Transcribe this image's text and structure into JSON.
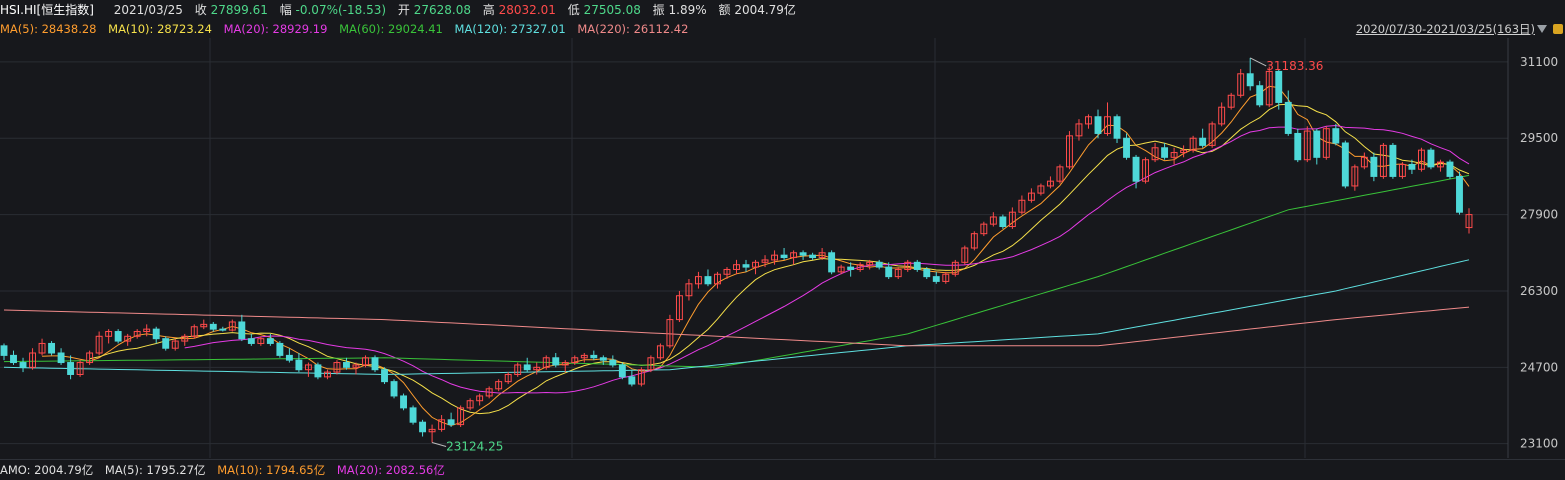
{
  "header": {
    "symbol": "HSI.HI[恒生指数]",
    "date": "2021/03/25",
    "close_label": "收",
    "close": "27899.61",
    "change_label": "幅",
    "change": "-0.07%(-18.53)",
    "open_label": "开",
    "open": "27628.08",
    "high_label": "高",
    "high": "28032.01",
    "low_label": "低",
    "low": "27505.08",
    "amp_label": "振",
    "amp": "1.89%",
    "amount_label": "额",
    "amount": "2004.79亿"
  },
  "ma_bar": {
    "ma5": "MA(5): 28438.28",
    "ma10": "MA(10): 28723.24",
    "ma20": "MA(20): 28929.19",
    "ma60": "MA(60): 29024.41",
    "ma120": "MA(120): 27327.01",
    "ma220": "MA(220): 26112.42",
    "range": "2020/07/30-2021/03/25(163日)"
  },
  "footer": {
    "amo": "AMO: 2004.79亿",
    "ma5": "MA(5): 1795.27亿",
    "ma10": "MA(10): 1794.65亿",
    "ma20": "MA(20): 2082.56亿"
  },
  "colors": {
    "up": "#ff4b4b",
    "down": "#4ed8d8",
    "ma5": "#ff9d2e",
    "ma10": "#f5e04a",
    "ma20": "#e53be5",
    "ma60": "#39c339",
    "ma120": "#5fe0e0",
    "ma220": "#f08a8a",
    "grid": "#2a2d33",
    "axis_text": "#c8c8c8"
  },
  "chart_data": {
    "type": "candlestick",
    "ylim": [
      22800,
      31600
    ],
    "y_ticks": [
      "31100",
      "29500",
      "27900",
      "26300",
      "24700",
      "23100"
    ],
    "annotations": {
      "max_label": "31183.36",
      "min_label": "23124.25"
    },
    "candles_ohlc": [
      [
        25150,
        25200,
        24850,
        24950
      ],
      [
        24950,
        25050,
        24750,
        24800
      ],
      [
        24800,
        24900,
        24600,
        24700
      ],
      [
        24700,
        25100,
        24650,
        25000
      ],
      [
        25000,
        25300,
        24950,
        25200
      ],
      [
        25200,
        25250,
        24950,
        25000
      ],
      [
        25000,
        25100,
        24750,
        24800
      ],
      [
        24800,
        24950,
        24450,
        24550
      ],
      [
        24550,
        24850,
        24500,
        24800
      ],
      [
        24800,
        25050,
        24750,
        25000
      ],
      [
        25000,
        25450,
        24950,
        25350
      ],
      [
        25350,
        25500,
        25200,
        25450
      ],
      [
        25450,
        25500,
        25200,
        25250
      ],
      [
        25250,
        25400,
        25150,
        25350
      ],
      [
        25350,
        25500,
        25300,
        25450
      ],
      [
        25450,
        25600,
        25350,
        25500
      ],
      [
        25500,
        25550,
        25200,
        25300
      ],
      [
        25300,
        25350,
        25050,
        25100
      ],
      [
        25100,
        25300,
        25050,
        25250
      ],
      [
        25250,
        25400,
        25150,
        25350
      ],
      [
        25350,
        25600,
        25300,
        25550
      ],
      [
        25550,
        25700,
        25500,
        25600
      ],
      [
        25600,
        25650,
        25450,
        25500
      ],
      [
        25500,
        25550,
        25450,
        25480
      ],
      [
        25480,
        25700,
        25450,
        25650
      ],
      [
        25650,
        25800,
        25250,
        25300
      ],
      [
        25300,
        25400,
        25150,
        25200
      ],
      [
        25200,
        25350,
        25150,
        25300
      ],
      [
        25300,
        25400,
        25150,
        25200
      ],
      [
        25200,
        25250,
        24900,
        24950
      ],
      [
        24950,
        25100,
        24800,
        24850
      ],
      [
        24850,
        25000,
        24600,
        24650
      ],
      [
        24650,
        24800,
        24500,
        24750
      ],
      [
        24750,
        24800,
        24450,
        24500
      ],
      [
        24500,
        24650,
        24450,
        24600
      ],
      [
        24600,
        24850,
        24550,
        24800
      ],
      [
        24800,
        24900,
        24650,
        24700
      ],
      [
        24700,
        24800,
        24550,
        24750
      ],
      [
        24750,
        24950,
        24700,
        24900
      ],
      [
        24900,
        24950,
        24600,
        24650
      ],
      [
        24650,
        24700,
        24350,
        24400
      ],
      [
        24400,
        24450,
        24050,
        24100
      ],
      [
        24100,
        24150,
        23800,
        23850
      ],
      [
        23850,
        23900,
        23500,
        23550
      ],
      [
        23550,
        23600,
        23250,
        23350
      ],
      [
        23350,
        23500,
        23124,
        23400
      ],
      [
        23400,
        23700,
        23350,
        23600
      ],
      [
        23600,
        23750,
        23450,
        23500
      ],
      [
        23500,
        23900,
        23450,
        23850
      ],
      [
        23850,
        24050,
        23800,
        24000
      ],
      [
        24000,
        24150,
        23900,
        24100
      ],
      [
        24100,
        24300,
        24050,
        24250
      ],
      [
        24250,
        24450,
        24200,
        24400
      ],
      [
        24400,
        24600,
        24350,
        24550
      ],
      [
        24550,
        24800,
        24500,
        24750
      ],
      [
        24750,
        24900,
        24600,
        24650
      ],
      [
        24650,
        24800,
        24550,
        24700
      ],
      [
        24700,
        24950,
        24650,
        24900
      ],
      [
        24900,
        25000,
        24700,
        24750
      ],
      [
        24750,
        24850,
        24600,
        24800
      ],
      [
        24800,
        24950,
        24750,
        24900
      ],
      [
        24900,
        25000,
        24800,
        24950
      ],
      [
        24950,
        25050,
        24850,
        24900
      ],
      [
        24900,
        24950,
        24750,
        24850
      ],
      [
        24850,
        24950,
        24700,
        24750
      ],
      [
        24750,
        24800,
        24450,
        24500
      ],
      [
        24500,
        24650,
        24300,
        24350
      ],
      [
        24350,
        24700,
        24300,
        24650
      ],
      [
        24650,
        24950,
        24600,
        24900
      ],
      [
        24900,
        25200,
        24850,
        25150
      ],
      [
        25150,
        25800,
        25100,
        25700
      ],
      [
        25700,
        26300,
        25650,
        26200
      ],
      [
        26200,
        26550,
        26100,
        26450
      ],
      [
        26450,
        26700,
        26350,
        26600
      ],
      [
        26600,
        26750,
        26400,
        26450
      ],
      [
        26450,
        26700,
        26350,
        26650
      ],
      [
        26650,
        26800,
        26550,
        26750
      ],
      [
        26750,
        26950,
        26650,
        26850
      ],
      [
        26850,
        26950,
        26700,
        26800
      ],
      [
        26800,
        26950,
        26650,
        26900
      ],
      [
        26900,
        27050,
        26800,
        26950
      ],
      [
        26950,
        27150,
        26850,
        27050
      ],
      [
        27050,
        27200,
        26950,
        27000
      ],
      [
        27000,
        27150,
        26850,
        27100
      ],
      [
        27100,
        27150,
        26950,
        27050
      ],
      [
        27050,
        27100,
        26950,
        27000
      ],
      [
        27000,
        27200,
        26950,
        27100
      ],
      [
        27100,
        27150,
        26650,
        26700
      ],
      [
        26700,
        26850,
        26650,
        26800
      ],
      [
        26800,
        26900,
        26600,
        26750
      ],
      [
        26750,
        26900,
        26700,
        26850
      ],
      [
        26850,
        26950,
        26750,
        26900
      ],
      [
        26900,
        26950,
        26750,
        26800
      ],
      [
        26800,
        26900,
        26550,
        26600
      ],
      [
        26600,
        26800,
        26550,
        26750
      ],
      [
        26750,
        26950,
        26700,
        26900
      ],
      [
        26900,
        26950,
        26700,
        26750
      ],
      [
        26750,
        26800,
        26550,
        26600
      ],
      [
        26600,
        26700,
        26450,
        26500
      ],
      [
        26500,
        26700,
        26450,
        26650
      ],
      [
        26650,
        26950,
        26600,
        26900
      ],
      [
        26900,
        27250,
        26850,
        27200
      ],
      [
        27200,
        27550,
        27150,
        27500
      ],
      [
        27500,
        27750,
        27450,
        27700
      ],
      [
        27700,
        27950,
        27650,
        27850
      ],
      [
        27850,
        27900,
        27600,
        27650
      ],
      [
        27650,
        28050,
        27600,
        27950
      ],
      [
        27950,
        28300,
        27900,
        28200
      ],
      [
        28200,
        28450,
        28150,
        28350
      ],
      [
        28350,
        28550,
        28300,
        28500
      ],
      [
        28500,
        28700,
        28450,
        28600
      ],
      [
        28600,
        28950,
        28550,
        28900
      ],
      [
        28900,
        29650,
        28850,
        29550
      ],
      [
        29550,
        29900,
        29450,
        29800
      ],
      [
        29800,
        30000,
        29700,
        29950
      ],
      [
        29950,
        30100,
        29500,
        29600
      ],
      [
        29600,
        30250,
        29550,
        29950
      ],
      [
        29950,
        30000,
        29400,
        29500
      ],
      [
        29500,
        29600,
        29050,
        29100
      ],
      [
        29100,
        29150,
        28450,
        28600
      ],
      [
        28600,
        29100,
        28550,
        29050
      ],
      [
        29050,
        29400,
        29000,
        29300
      ],
      [
        29300,
        29400,
        29050,
        29100
      ],
      [
        29100,
        29300,
        28950,
        29200
      ],
      [
        29200,
        29350,
        29100,
        29250
      ],
      [
        29250,
        29550,
        29200,
        29500
      ],
      [
        29500,
        29700,
        29300,
        29350
      ],
      [
        29350,
        29850,
        29300,
        29800
      ],
      [
        29800,
        30250,
        29750,
        30150
      ],
      [
        30150,
        30450,
        30100,
        30400
      ],
      [
        30400,
        30950,
        30350,
        30850
      ],
      [
        30850,
        31183.36,
        30500,
        30600
      ],
      [
        30600,
        30700,
        30150,
        30200
      ],
      [
        30200,
        31000,
        30150,
        30900
      ],
      [
        30900,
        30950,
        30100,
        30250
      ],
      [
        30250,
        30500,
        29550,
        29600
      ],
      [
        29600,
        29700,
        29000,
        29050
      ],
      [
        29050,
        29750,
        29000,
        29650
      ],
      [
        29650,
        29700,
        28950,
        29100
      ],
      [
        29100,
        29750,
        29050,
        29700
      ],
      [
        29700,
        29800,
        29350,
        29400
      ],
      [
        29400,
        29450,
        28450,
        28500
      ],
      [
        28500,
        28950,
        28400,
        28900
      ],
      [
        28900,
        29200,
        28850,
        29100
      ],
      [
        29100,
        29200,
        28600,
        28700
      ],
      [
        28700,
        29400,
        28650,
        29350
      ],
      [
        29350,
        29400,
        28650,
        28700
      ],
      [
        28700,
        29000,
        28650,
        28950
      ],
      [
        28950,
        29050,
        28750,
        28850
      ],
      [
        28850,
        29300,
        28800,
        29250
      ],
      [
        29250,
        29300,
        28850,
        28900
      ],
      [
        28900,
        29050,
        28800,
        29000
      ],
      [
        29000,
        29050,
        28650,
        28700
      ],
      [
        28700,
        28800,
        27900,
        27950
      ],
      [
        27628.08,
        28032.01,
        27505.08,
        27899.61
      ]
    ],
    "ma_lines": [
      {
        "name": "MA(5)",
        "key": "ma5",
        "period": 5
      },
      {
        "name": "MA(10)",
        "key": "ma10",
        "period": 10
      },
      {
        "name": "MA(20)",
        "key": "ma20",
        "period": 20
      },
      {
        "name": "MA(60)",
        "key": "ma60",
        "points": [
          [
            0,
            24820
          ],
          [
            40,
            24900
          ],
          [
            75,
            24700
          ],
          [
            95,
            25400
          ],
          [
            115,
            26600
          ],
          [
            135,
            28000
          ],
          [
            162,
            29024
          ]
        ]
      },
      {
        "name": "MA(120)",
        "key": "ma120",
        "points": [
          [
            0,
            24700
          ],
          [
            40,
            24550
          ],
          [
            70,
            24650
          ],
          [
            95,
            25150
          ],
          [
            115,
            25400
          ],
          [
            140,
            26300
          ],
          [
            162,
            27327
          ]
        ]
      },
      {
        "name": "MA(220)",
        "key": "ma220",
        "points": [
          [
            0,
            25900
          ],
          [
            40,
            25700
          ],
          [
            70,
            25400
          ],
          [
            95,
            25150
          ],
          [
            115,
            25150
          ],
          [
            140,
            25700
          ],
          [
            162,
            26112
          ]
        ]
      }
    ]
  }
}
